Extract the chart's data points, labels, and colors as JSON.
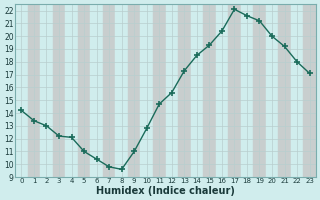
{
  "x": [
    0,
    1,
    2,
    3,
    4,
    5,
    6,
    7,
    8,
    9,
    10,
    11,
    12,
    13,
    14,
    15,
    16,
    17,
    18,
    19,
    20,
    21,
    22,
    23
  ],
  "y": [
    14.2,
    13.4,
    13.0,
    12.2,
    12.1,
    11.0,
    10.4,
    9.8,
    9.6,
    11.0,
    12.8,
    14.7,
    15.6,
    17.3,
    18.5,
    19.3,
    20.4,
    22.1,
    21.6,
    21.2,
    20.0,
    19.2,
    18.0,
    17.1
  ],
  "line_color": "#1a6b5a",
  "marker": "+",
  "marker_size": 4,
  "marker_lw": 1.2,
  "line_width": 1.0,
  "bg_color": "#d0eded",
  "col_even_color": "#d0eded",
  "col_odd_color": "#c8cece",
  "grid_line_color": "#b8cece",
  "xlabel": "Humidex (Indice chaleur)",
  "xlim": [
    -0.5,
    23.5
  ],
  "ylim": [
    9,
    22.5
  ],
  "yticks": [
    9,
    10,
    11,
    12,
    13,
    14,
    15,
    16,
    17,
    18,
    19,
    20,
    21,
    22
  ],
  "xticks": [
    0,
    1,
    2,
    3,
    4,
    5,
    6,
    7,
    8,
    9,
    10,
    11,
    12,
    13,
    14,
    15,
    16,
    17,
    18,
    19,
    20,
    21,
    22,
    23
  ]
}
